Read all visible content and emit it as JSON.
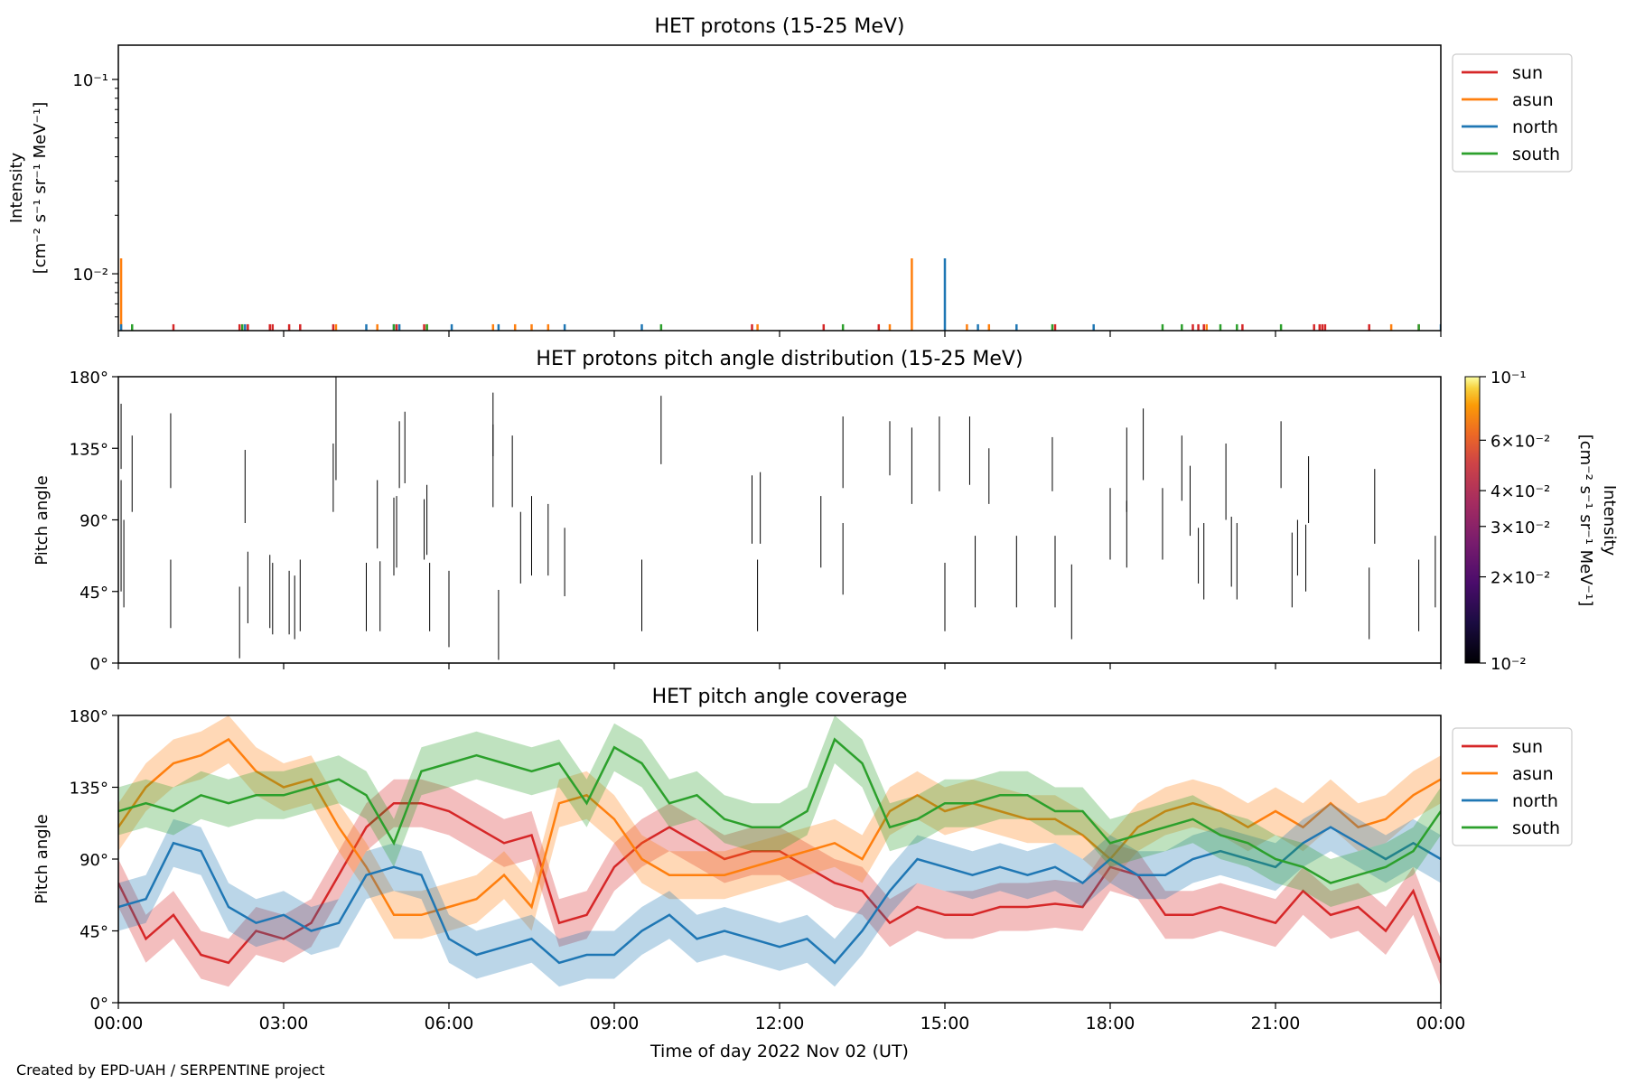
{
  "footer": "Created by EPD-UAH / SERPENTINE project",
  "x_axis": {
    "label": "Time of day 2022 Nov 02 (UT)",
    "ticks": [
      "00:00",
      "03:00",
      "06:00",
      "09:00",
      "12:00",
      "15:00",
      "18:00",
      "21:00",
      "00:00"
    ],
    "tick_hours": [
      0,
      3,
      6,
      9,
      12,
      15,
      18,
      21,
      24
    ],
    "range_hours": [
      0,
      24
    ]
  },
  "colors": {
    "sun": "#d62728",
    "asun": "#ff7f0e",
    "north": "#1f77b4",
    "south": "#2ca02c"
  },
  "chart_data": [
    {
      "id": "intensity",
      "type": "line",
      "title": "HET protons (15-25 MeV)",
      "ylabel": [
        "Intensity",
        "[cm⁻² s⁻¹ sr⁻¹ MeV⁻¹]"
      ],
      "yscale": "log",
      "ylim": [
        0.0051,
        0.15
      ],
      "yticks": [
        "10⁻¹",
        "10⁻²"
      ],
      "ytick_values": [
        0.1,
        0.01
      ],
      "legend": [
        "sun",
        "asun",
        "north",
        "south"
      ],
      "legend_position": "outside-right-top",
      "series": [
        {
          "name": "sun",
          "spikes_hours": [
            1.0,
            2.2,
            2.35,
            2.75,
            2.8,
            3.1,
            3.3,
            3.9,
            5.05,
            5.55,
            11.5,
            12.8,
            13.8,
            17.0,
            19.5,
            19.6,
            19.7,
            20.4,
            21.7,
            21.8,
            21.85,
            21.9,
            22.7,
            23.6
          ],
          "spikes_values": [
            0.0055,
            0.0055,
            0.0055,
            0.0055,
            0.0055,
            0.0055,
            0.0055,
            0.0055,
            0.0055,
            0.0055,
            0.0055,
            0.0055,
            0.0055,
            0.0055,
            0.0055,
            0.0055,
            0.0055,
            0.0055,
            0.0055,
            0.0055,
            0.0055,
            0.0055,
            0.0055,
            0.0055
          ]
        },
        {
          "name": "asun",
          "spikes_hours": [
            0.05,
            3.95,
            4.7,
            5.6,
            6.8,
            7.2,
            7.5,
            7.8,
            11.6,
            14.0,
            14.4,
            15.4,
            15.8,
            19.75,
            23.1
          ],
          "spikes_values": [
            0.012,
            0.0055,
            0.0055,
            0.0055,
            0.0055,
            0.0055,
            0.0055,
            0.0055,
            0.0055,
            0.0055,
            0.012,
            0.0055,
            0.0055,
            0.0055,
            0.0055
          ]
        },
        {
          "name": "north",
          "spikes_hours": [
            0.05,
            2.3,
            4.5,
            5.0,
            5.1,
            6.05,
            6.9,
            8.1,
            9.5,
            15.0,
            15.6,
            16.3,
            17.7,
            24.0
          ],
          "spikes_values": [
            0.0055,
            0.0055,
            0.0055,
            0.0055,
            0.0055,
            0.0055,
            0.0055,
            0.0055,
            0.0055,
            0.012,
            0.0055,
            0.0055,
            0.0055,
            0.0055
          ]
        },
        {
          "name": "south",
          "spikes_hours": [
            0.25,
            2.25,
            5.0,
            5.6,
            9.85,
            13.15,
            16.95,
            18.95,
            19.3,
            20.0,
            20.3,
            21.1,
            23.6
          ],
          "spikes_values": [
            0.0055,
            0.0055,
            0.0055,
            0.0055,
            0.0055,
            0.0055,
            0.0055,
            0.0055,
            0.0055,
            0.0055,
            0.0055,
            0.0055,
            0.0055
          ]
        }
      ]
    },
    {
      "id": "pad",
      "type": "heatmap",
      "title": "HET protons pitch angle distribution (15-25 MeV)",
      "ylabel": "Pitch angle",
      "ylim": [
        0,
        180
      ],
      "yticks": [
        "0°",
        "45°",
        "90°",
        "135°",
        "180°"
      ],
      "ytick_values": [
        0,
        45,
        90,
        135,
        180
      ],
      "colorbar": {
        "label": [
          "Intensity",
          "[cm⁻² s⁻¹ sr⁻¹ MeV⁻¹]"
        ],
        "scale": "log",
        "range": [
          0.01,
          0.1
        ],
        "ticks": [
          "10⁻²",
          "2×10⁻²",
          "3×10⁻²",
          "4×10⁻²",
          "6×10⁻²",
          "10⁻¹"
        ],
        "tick_values": [
          0.01,
          0.02,
          0.03,
          0.04,
          0.06,
          0.1
        ],
        "colormap": "inferno"
      },
      "segments": [
        [
          0.05,
          122,
          163
        ],
        [
          0.05,
          45,
          115
        ],
        [
          0.1,
          35,
          90
        ],
        [
          0.25,
          95,
          143
        ],
        [
          0.95,
          110,
          157
        ],
        [
          0.95,
          22,
          65
        ],
        [
          2.2,
          3,
          48
        ],
        [
          2.3,
          88,
          134
        ],
        [
          2.35,
          25,
          70
        ],
        [
          2.75,
          22,
          68
        ],
        [
          2.8,
          18,
          63
        ],
        [
          3.1,
          18,
          58
        ],
        [
          3.2,
          15,
          55
        ],
        [
          3.3,
          20,
          65
        ],
        [
          3.9,
          95,
          138
        ],
        [
          3.95,
          115,
          180
        ],
        [
          4.5,
          20,
          63
        ],
        [
          4.7,
          72,
          115
        ],
        [
          4.75,
          20,
          64
        ],
        [
          5.0,
          55,
          104
        ],
        [
          5.05,
          60,
          105
        ],
        [
          5.1,
          110,
          152
        ],
        [
          5.2,
          113,
          158
        ],
        [
          5.55,
          65,
          103
        ],
        [
          5.6,
          68,
          112
        ],
        [
          5.65,
          20,
          63
        ],
        [
          6.0,
          10,
          58
        ],
        [
          6.8,
          130,
          170
        ],
        [
          6.8,
          98,
          150
        ],
        [
          6.9,
          2,
          46
        ],
        [
          7.15,
          98,
          143
        ],
        [
          7.3,
          50,
          95
        ],
        [
          7.5,
          55,
          105
        ],
        [
          7.8,
          55,
          100
        ],
        [
          8.1,
          42,
          85
        ],
        [
          9.5,
          20,
          65
        ],
        [
          9.85,
          125,
          168
        ],
        [
          11.5,
          75,
          118
        ],
        [
          11.6,
          20,
          65
        ],
        [
          11.65,
          75,
          120
        ],
        [
          12.75,
          60,
          105
        ],
        [
          13.15,
          43,
          88
        ],
        [
          13.15,
          110,
          155
        ],
        [
          14.0,
          118,
          152
        ],
        [
          14.4,
          100,
          148
        ],
        [
          14.9,
          108,
          155
        ],
        [
          15.0,
          20,
          63
        ],
        [
          15.45,
          112,
          155
        ],
        [
          15.55,
          35,
          80
        ],
        [
          15.8,
          100,
          135
        ],
        [
          16.3,
          35,
          80
        ],
        [
          16.95,
          108,
          142
        ],
        [
          17.0,
          35,
          80
        ],
        [
          17.3,
          15,
          62
        ],
        [
          18.0,
          65,
          110
        ],
        [
          18.3,
          95,
          148
        ],
        [
          18.3,
          60,
          102
        ],
        [
          18.6,
          115,
          160
        ],
        [
          18.95,
          65,
          110
        ],
        [
          19.3,
          102,
          143
        ],
        [
          19.45,
          80,
          124
        ],
        [
          19.6,
          50,
          85
        ],
        [
          19.7,
          40,
          88
        ],
        [
          20.1,
          90,
          138
        ],
        [
          20.2,
          48,
          92
        ],
        [
          20.3,
          40,
          88
        ],
        [
          21.1,
          110,
          152
        ],
        [
          21.3,
          35,
          82
        ],
        [
          21.4,
          55,
          90
        ],
        [
          21.55,
          45,
          87
        ],
        [
          21.6,
          88,
          130
        ],
        [
          22.7,
          15,
          60
        ],
        [
          22.8,
          75,
          122
        ],
        [
          23.6,
          20,
          65
        ],
        [
          23.9,
          35,
          80
        ]
      ]
    },
    {
      "id": "coverage",
      "type": "line",
      "title": "HET pitch angle coverage",
      "ylabel": "Pitch angle",
      "ylim": [
        0,
        180
      ],
      "yticks": [
        "0°",
        "45°",
        "90°",
        "135°",
        "180°"
      ],
      "ytick_values": [
        0,
        45,
        90,
        135,
        180
      ],
      "legend": [
        "sun",
        "asun",
        "north",
        "south"
      ],
      "legend_position": "outside-right-top",
      "series": [
        {
          "name": "sun",
          "x": [
            0,
            0.5,
            1.0,
            1.5,
            2.0,
            2.5,
            3.0,
            3.5,
            4.0,
            4.5,
            5.0,
            5.5,
            6.0,
            6.5,
            7.0,
            7.5,
            8.0,
            8.5,
            9.0,
            9.5,
            10.0,
            10.5,
            11.0,
            11.5,
            12.0,
            12.5,
            13.0,
            13.5,
            14.0,
            14.5,
            15.0,
            15.5,
            16.0,
            16.5,
            17.0,
            17.5,
            18.0,
            18.5,
            19.0,
            19.5,
            20.0,
            20.5,
            21.0,
            21.5,
            22.0,
            22.5,
            23.0,
            23.5,
            24.0
          ],
          "y": [
            75,
            40,
            55,
            30,
            25,
            45,
            40,
            50,
            80,
            110,
            125,
            125,
            120,
            110,
            100,
            105,
            50,
            55,
            85,
            100,
            110,
            100,
            90,
            95,
            95,
            85,
            75,
            70,
            50,
            60,
            55,
            55,
            60,
            60,
            62,
            60,
            85,
            80,
            55,
            55,
            60,
            55,
            50,
            70,
            55,
            60,
            45,
            70,
            25
          ]
        },
        {
          "name": "asun",
          "x": [
            0,
            0.5,
            1.0,
            1.5,
            2.0,
            2.5,
            3.0,
            3.5,
            4.0,
            4.5,
            5.0,
            5.5,
            6.0,
            6.5,
            7.0,
            7.5,
            8.0,
            8.5,
            9.0,
            9.5,
            10.0,
            10.5,
            11.0,
            11.5,
            12.0,
            12.5,
            13.0,
            13.5,
            14.0,
            14.5,
            15.0,
            15.5,
            16.0,
            16.5,
            17.0,
            17.5,
            18.0,
            18.5,
            19.0,
            19.5,
            20.0,
            20.5,
            21.0,
            21.5,
            22.0,
            22.5,
            23.0,
            23.5,
            24.0
          ],
          "y": [
            110,
            135,
            150,
            155,
            165,
            145,
            135,
            140,
            110,
            85,
            55,
            55,
            60,
            65,
            80,
            60,
            125,
            130,
            115,
            90,
            80,
            80,
            80,
            85,
            90,
            95,
            100,
            90,
            120,
            130,
            120,
            125,
            120,
            115,
            115,
            105,
            90,
            110,
            120,
            125,
            120,
            110,
            120,
            110,
            125,
            110,
            115,
            130,
            140
          ]
        },
        {
          "name": "north",
          "x": [
            0,
            0.5,
            1.0,
            1.5,
            2.0,
            2.5,
            3.0,
            3.5,
            4.0,
            4.5,
            5.0,
            5.5,
            6.0,
            6.5,
            7.0,
            7.5,
            8.0,
            8.5,
            9.0,
            9.5,
            10.0,
            10.5,
            11.0,
            11.5,
            12.0,
            12.5,
            13.0,
            13.5,
            14.0,
            14.5,
            15.0,
            15.5,
            16.0,
            16.5,
            17.0,
            17.5,
            18.0,
            18.5,
            19.0,
            19.5,
            20.0,
            20.5,
            21.0,
            21.5,
            22.0,
            22.5,
            23.0,
            23.5,
            24.0
          ],
          "y": [
            60,
            65,
            100,
            95,
            60,
            50,
            55,
            45,
            50,
            80,
            85,
            80,
            40,
            30,
            35,
            40,
            25,
            30,
            30,
            45,
            55,
            40,
            45,
            40,
            35,
            40,
            25,
            45,
            70,
            90,
            85,
            80,
            85,
            80,
            85,
            75,
            90,
            80,
            80,
            90,
            95,
            90,
            85,
            100,
            110,
            100,
            90,
            100,
            90
          ]
        },
        {
          "name": "south",
          "x": [
            0,
            0.5,
            1.0,
            1.5,
            2.0,
            2.5,
            3.0,
            3.5,
            4.0,
            4.5,
            5.0,
            5.5,
            6.0,
            6.5,
            7.0,
            7.5,
            8.0,
            8.5,
            9.0,
            9.5,
            10.0,
            10.5,
            11.0,
            11.5,
            12.0,
            12.5,
            13.0,
            13.5,
            14.0,
            14.5,
            15.0,
            15.5,
            16.0,
            16.5,
            17.0,
            17.5,
            18.0,
            18.5,
            19.0,
            19.5,
            20.0,
            20.5,
            21.0,
            21.5,
            22.0,
            22.5,
            23.0,
            23.5,
            24.0
          ],
          "y": [
            120,
            125,
            120,
            130,
            125,
            130,
            130,
            135,
            140,
            130,
            100,
            145,
            150,
            155,
            150,
            145,
            150,
            125,
            160,
            150,
            125,
            130,
            115,
            110,
            110,
            120,
            165,
            150,
            110,
            115,
            125,
            125,
            130,
            130,
            120,
            120,
            100,
            105,
            110,
            115,
            105,
            100,
            90,
            85,
            75,
            80,
            85,
            95,
            120
          ]
        }
      ]
    }
  ]
}
